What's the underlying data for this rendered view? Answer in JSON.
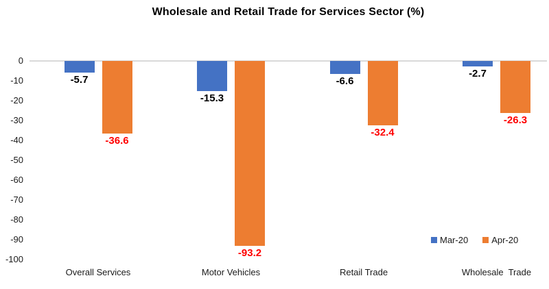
{
  "chart_data": {
    "type": "bar",
    "title": "Wholesale and Retail Trade for Services Sector (%)",
    "categories": [
      "Overall Services",
      "Motor Vehicles",
      "Retail Trade",
      "Wholesale  Trade"
    ],
    "series": [
      {
        "name": "Mar-20",
        "color": "#4472C4",
        "label_color": "#000000",
        "values": [
          -5.7,
          -15.3,
          -6.6,
          -2.7
        ]
      },
      {
        "name": "Apr-20",
        "color": "#ED7D31",
        "label_color": "#FF0000",
        "values": [
          -36.6,
          -93.2,
          -32.4,
          -26.3
        ]
      }
    ],
    "y_ticks": [
      0,
      -10,
      -20,
      -30,
      -40,
      -50,
      -60,
      -70,
      -80,
      -90,
      -100
    ],
    "ylim": [
      0,
      -100
    ],
    "grid": false,
    "axis_line_color": "#D9D9D9",
    "legend_position": "inside-bottom-right",
    "background": "#FFFFFF"
  }
}
